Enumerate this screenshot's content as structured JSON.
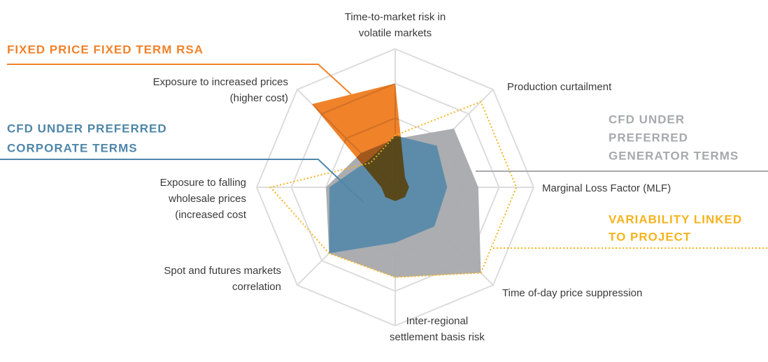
{
  "chart_data": {
    "type": "radar",
    "categories": [
      [
        "Time-to-market risk in",
        "volatile markets"
      ],
      [
        "Production curtailment"
      ],
      [
        "Marginal Loss Factor (MLF)"
      ],
      [
        "Time of-day price suppression"
      ],
      [
        "Inter-regional",
        "settlement basis risk"
      ],
      [
        "Spot and futures markets",
        "correlation"
      ],
      [
        "Exposure to falling",
        "wholesale prices",
        "(increased cost"
      ],
      [
        "Exposure to increased prices",
        "(higher cost)"
      ]
    ],
    "rlim": [
      0,
      4
    ],
    "rticks": [
      1,
      2,
      3,
      4
    ],
    "grid": true,
    "series": [
      {
        "name": [
          "CFD UNDER",
          "PREFERRED",
          "GENERATOR TERMS"
        ],
        "color": "#a7a9ac",
        "fill": true,
        "style": "solid",
        "values": [
          1.4,
          2.4,
          2.4,
          3.5,
          2.6,
          2.7,
          2.0,
          1.4
        ]
      },
      {
        "name": [
          "CFD UNDER PREFERRED",
          "CORPORATE TERMS"
        ],
        "color": "#4f86a9",
        "fill": true,
        "style": "solid",
        "values": [
          1.5,
          1.7,
          1.5,
          1.6,
          1.6,
          2.7,
          1.9,
          1.1
        ]
      },
      {
        "name": [
          "FIXED PRICE FIXED TERM RSA"
        ],
        "color": "#f0822a",
        "fill": true,
        "style": "solid",
        "values": [
          3.0,
          0.4,
          0.4,
          0.4,
          0.4,
          0.4,
          0.4,
          3.4
        ]
      },
      {
        "name": [
          "VARIABILITY LINKED",
          "TO PROJECT"
        ],
        "color": "#f5b31c",
        "fill": false,
        "style": "dotted",
        "values": [
          1.5,
          3.5,
          3.5,
          3.5,
          2.6,
          2.7,
          3.6,
          1.0
        ]
      }
    ]
  }
}
